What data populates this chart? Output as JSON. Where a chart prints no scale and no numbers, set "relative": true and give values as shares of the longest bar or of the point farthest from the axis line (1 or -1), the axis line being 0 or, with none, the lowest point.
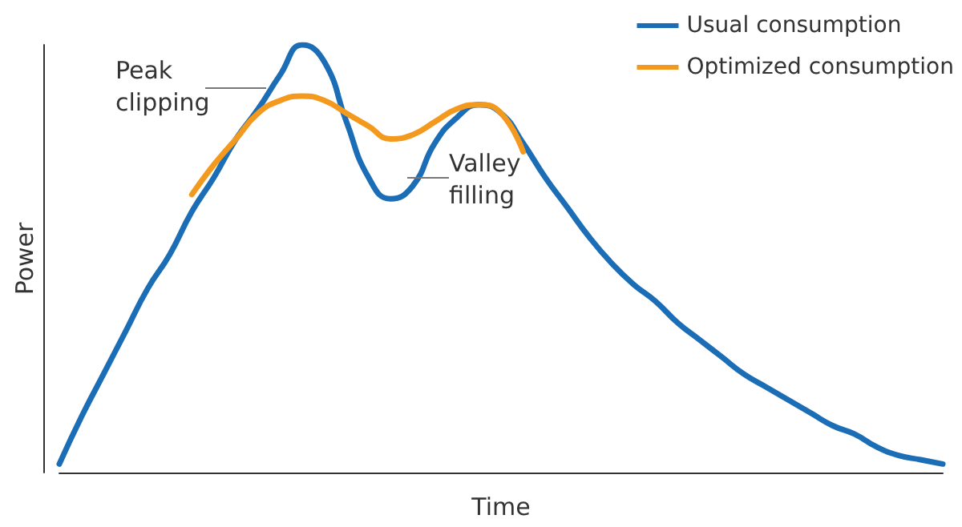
{
  "chart_data": {
    "type": "line",
    "relative": true,
    "xlabel": "Time",
    "ylabel": "Power",
    "legend": "top right",
    "marker": "none",
    "line_style": "solid",
    "grid": false,
    "annotations": [
      "Peak clipping",
      "Valley filling"
    ],
    "categories": [
      null,
      null,
      null,
      null,
      null,
      null,
      null,
      null,
      null,
      null,
      null,
      null,
      null,
      null,
      null,
      null,
      null,
      null,
      null,
      null,
      null,
      null,
      null,
      null,
      null,
      null,
      null,
      null,
      null,
      null,
      null,
      null,
      null,
      null,
      null,
      null,
      null,
      null,
      null,
      null,
      null
    ],
    "series": [
      {
        "name": "Usual consumption",
        "color": "#1b6db5",
        "values": [
          0.02,
          0.13,
          0.23,
          0.33,
          0.43,
          0.51,
          0.61,
          0.69,
          0.78,
          0.85,
          0.93,
          1,
          0.96,
          0.82,
          0.69,
          0.64,
          0.67,
          0.77,
          0.83,
          0.86,
          0.84,
          0.77,
          0.69,
          0.62,
          0.55,
          0.49,
          0.44,
          0.4,
          0.35,
          0.31,
          0.27,
          0.23,
          0.2,
          0.17,
          0.14,
          0.11,
          0.09,
          0.06,
          0.04,
          0.03,
          0.02
        ]
      },
      {
        "name": "Optimized consumption",
        "color": "#f39a1e",
        "values": [
          null,
          null,
          null,
          null,
          null,
          null,
          0.65,
          0.72,
          0.78,
          0.84,
          0.87,
          0.88,
          0.87,
          0.84,
          0.81,
          0.78,
          0.79,
          0.82,
          0.85,
          0.86,
          0.84,
          0.75,
          null,
          null,
          null,
          null,
          null,
          null,
          null,
          null,
          null,
          null,
          null,
          null,
          null,
          null,
          null,
          null,
          null,
          null,
          null
        ]
      }
    ]
  }
}
